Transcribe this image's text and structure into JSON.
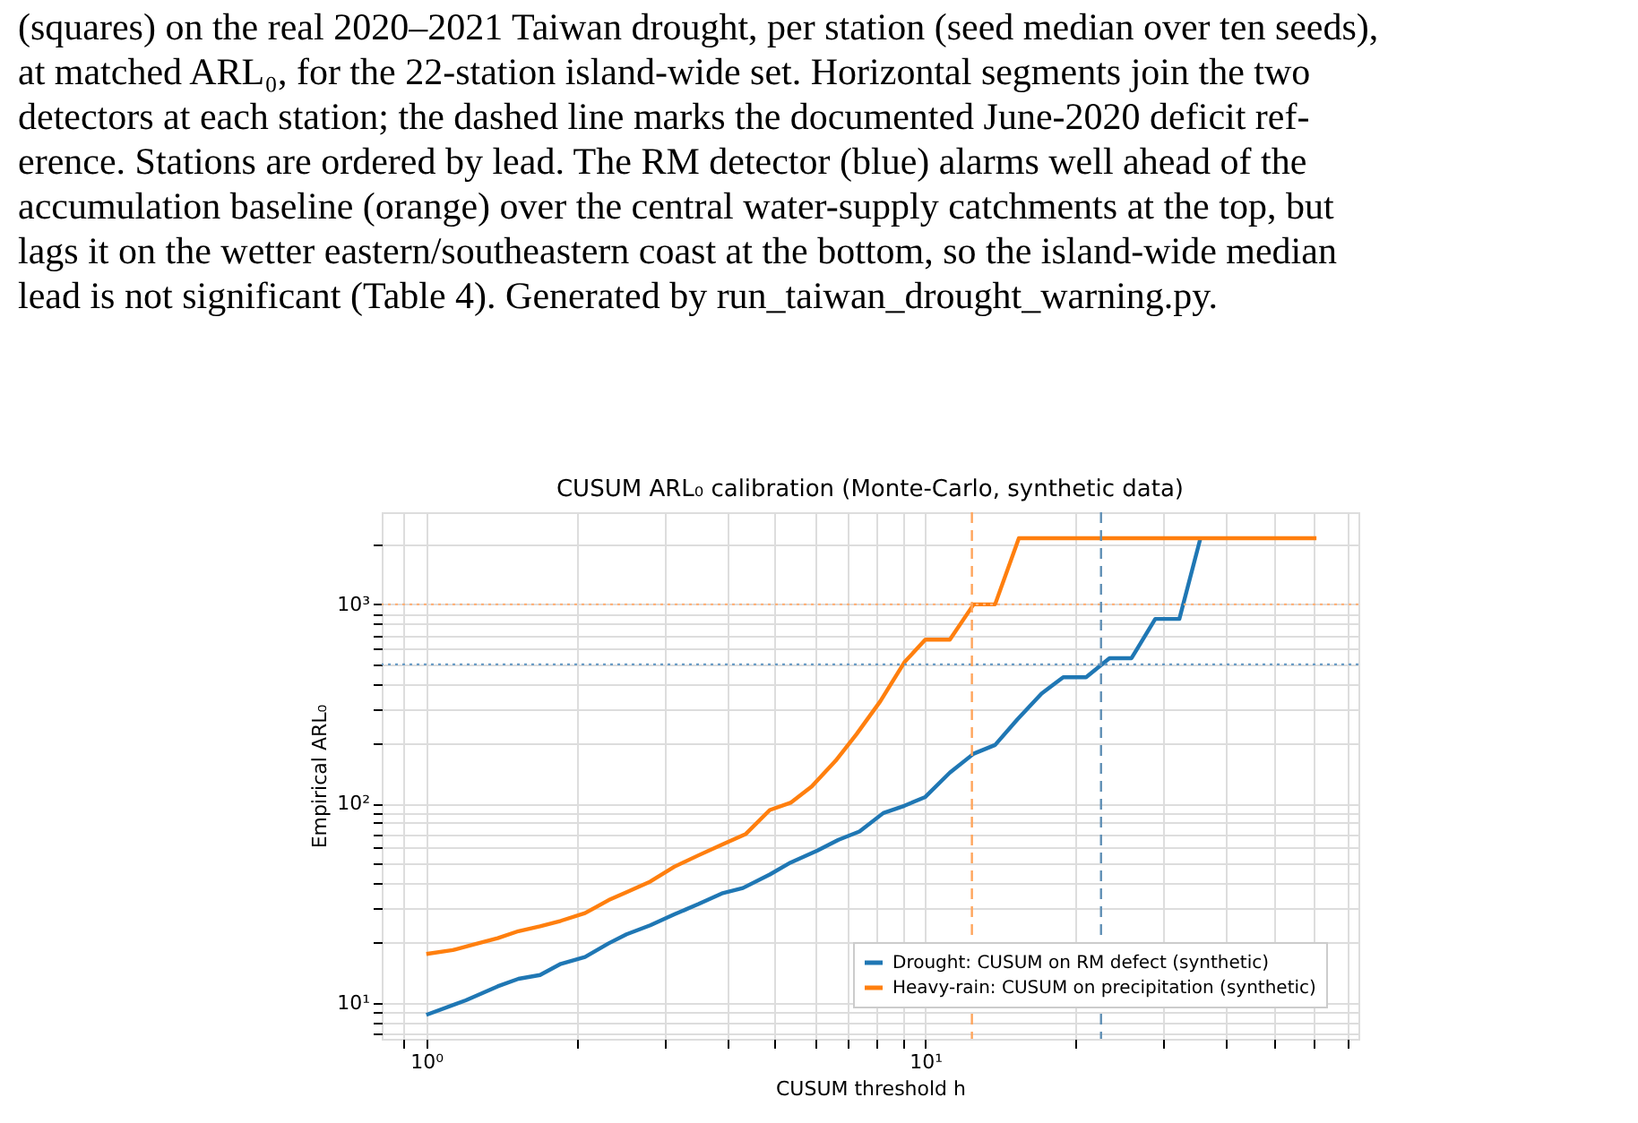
{
  "chart_data": {
    "type": "line",
    "title": "CUSUM ARL₀ calibration (Monte-Carlo, synthetic data)",
    "xlabel": "CUSUM threshold h",
    "ylabel": "Empirical ARL₀",
    "annotations": [
      "(squares) on the real 2020–2021 Taiwan drought, per station (seed median over ten seeds),",
      "at matched ARL₀, for the 22-station island-wide set. Horizontal segments join the two",
      "detectors at each station; the dashed line marks the documented June-2020 deficit ref-",
      "erence. Stations are ordered by lead. The RM detector (blue) alarms well ahead of the",
      "accumulation baseline (orange) over the central water-supply catchments at the top, but",
      "lags it on the wetter eastern/southeastern coast at the bottom, so the island-wide median",
      "lead is not significant (Table 4). Generated by run_taiwan_drought_warning.py."
    ],
    "series": [
      {
        "name": "Drought: CUSUM on RM defect (synthetic)",
        "color": "#1f77b4",
        "x": [
          1,
          1.2,
          1.39,
          1.53,
          1.69,
          1.86,
          2.08,
          2.32,
          2.52,
          2.81,
          3.14,
          3.51,
          3.91,
          4.31,
          4.88,
          5.37,
          6.08,
          6.7,
          7.38,
          8.24,
          9.08,
          10,
          11.2,
          12.5,
          13.8,
          15.3,
          17.1,
          18.9,
          21.0,
          23.4,
          25.9,
          28.9,
          32.3,
          35.6
        ],
        "values": [
          8.7,
          10.3,
          12.1,
          13.2,
          13.8,
          15.7,
          17.0,
          19.9,
          22.1,
          24.5,
          27.8,
          31.3,
          35.4,
          37.7,
          44.1,
          50.6,
          58.1,
          65.8,
          72.4,
          89.7,
          97.5,
          108,
          143,
          178,
          197,
          265,
          357,
          431,
          431,
          537,
          537,
          845,
          845,
          2148
        ]
      },
      {
        "name": "Heavy-rain: CUSUM on precipitation (synthetic)",
        "color": "#ff7f0e",
        "x": [
          1,
          1.13,
          1.25,
          1.39,
          1.53,
          1.69,
          1.86,
          2.08,
          2.32,
          2.52,
          2.81,
          3.14,
          3.51,
          3.91,
          4.37,
          4.88,
          5.37,
          5.92,
          6.61,
          7.28,
          8.13,
          9.08,
          10,
          11.2,
          12.5,
          13.8,
          15.4,
          60.8
        ],
        "values": [
          17.6,
          18.4,
          19.7,
          21.1,
          22.9,
          24.2,
          25.8,
          28.2,
          32.8,
          35.9,
          40.6,
          48.2,
          55.0,
          62.2,
          70.5,
          92.9,
          101,
          122,
          164,
          223,
          327,
          512,
          665,
          665,
          1000,
          1000,
          2148,
          2148
        ]
      }
    ],
    "log": "xy",
    "xlim": [
      0.814,
      73.8
    ],
    "ylim": [
      6.6,
      2900
    ],
    "xticks": [
      {
        "value": 0.9,
        "label": null
      },
      {
        "value": 1,
        "label": "10⁰"
      },
      {
        "value": 2,
        "label": null
      },
      {
        "value": 3,
        "label": null
      },
      {
        "value": 4,
        "label": null
      },
      {
        "value": 5,
        "label": null
      },
      {
        "value": 6,
        "label": null
      },
      {
        "value": 7,
        "label": null
      },
      {
        "value": 8,
        "label": null
      },
      {
        "value": 9,
        "label": null
      },
      {
        "value": 10,
        "label": "10¹"
      },
      {
        "value": 20,
        "label": null
      },
      {
        "value": 30,
        "label": null
      },
      {
        "value": 40,
        "label": null
      },
      {
        "value": 50,
        "label": null
      },
      {
        "value": 60,
        "label": null
      },
      {
        "value": 70,
        "label": null
      }
    ],
    "yticks": [
      {
        "value": 7,
        "label": null
      },
      {
        "value": 8,
        "label": null
      },
      {
        "value": 9,
        "label": null
      },
      {
        "value": 10,
        "label": "10¹"
      },
      {
        "value": 20,
        "label": null
      },
      {
        "value": 30,
        "label": null
      },
      {
        "value": 40,
        "label": null
      },
      {
        "value": 50,
        "label": null
      },
      {
        "value": 60,
        "label": null
      },
      {
        "value": 70,
        "label": null
      },
      {
        "value": 80,
        "label": null
      },
      {
        "value": 90,
        "label": null
      },
      {
        "value": 100,
        "label": "10²"
      },
      {
        "value": 200,
        "label": null
      },
      {
        "value": 300,
        "label": null
      },
      {
        "value": 400,
        "label": null
      },
      {
        "value": 500,
        "label": null
      },
      {
        "value": 600,
        "label": null
      },
      {
        "value": 700,
        "label": null
      },
      {
        "value": 800,
        "label": null
      },
      {
        "value": 900,
        "label": null
      },
      {
        "value": 1000,
        "label": "10³"
      },
      {
        "value": 2000,
        "label": null
      }
    ],
    "ref_lines": [
      {
        "axis": "y",
        "value": 1000,
        "color": "#ffb27a",
        "line_style": "dotted"
      },
      {
        "axis": "y",
        "value": 500,
        "color": "#6a9cc6",
        "line_style": "dotted"
      },
      {
        "axis": "x",
        "value": 12.4,
        "color": "#ffa55c",
        "line_style": "dashed"
      },
      {
        "axis": "x",
        "value": 22.5,
        "color": "#5f8fb5",
        "line_style": "dashed"
      }
    ],
    "grid": true,
    "legend": "bottom right",
    "line_style": "solid"
  }
}
